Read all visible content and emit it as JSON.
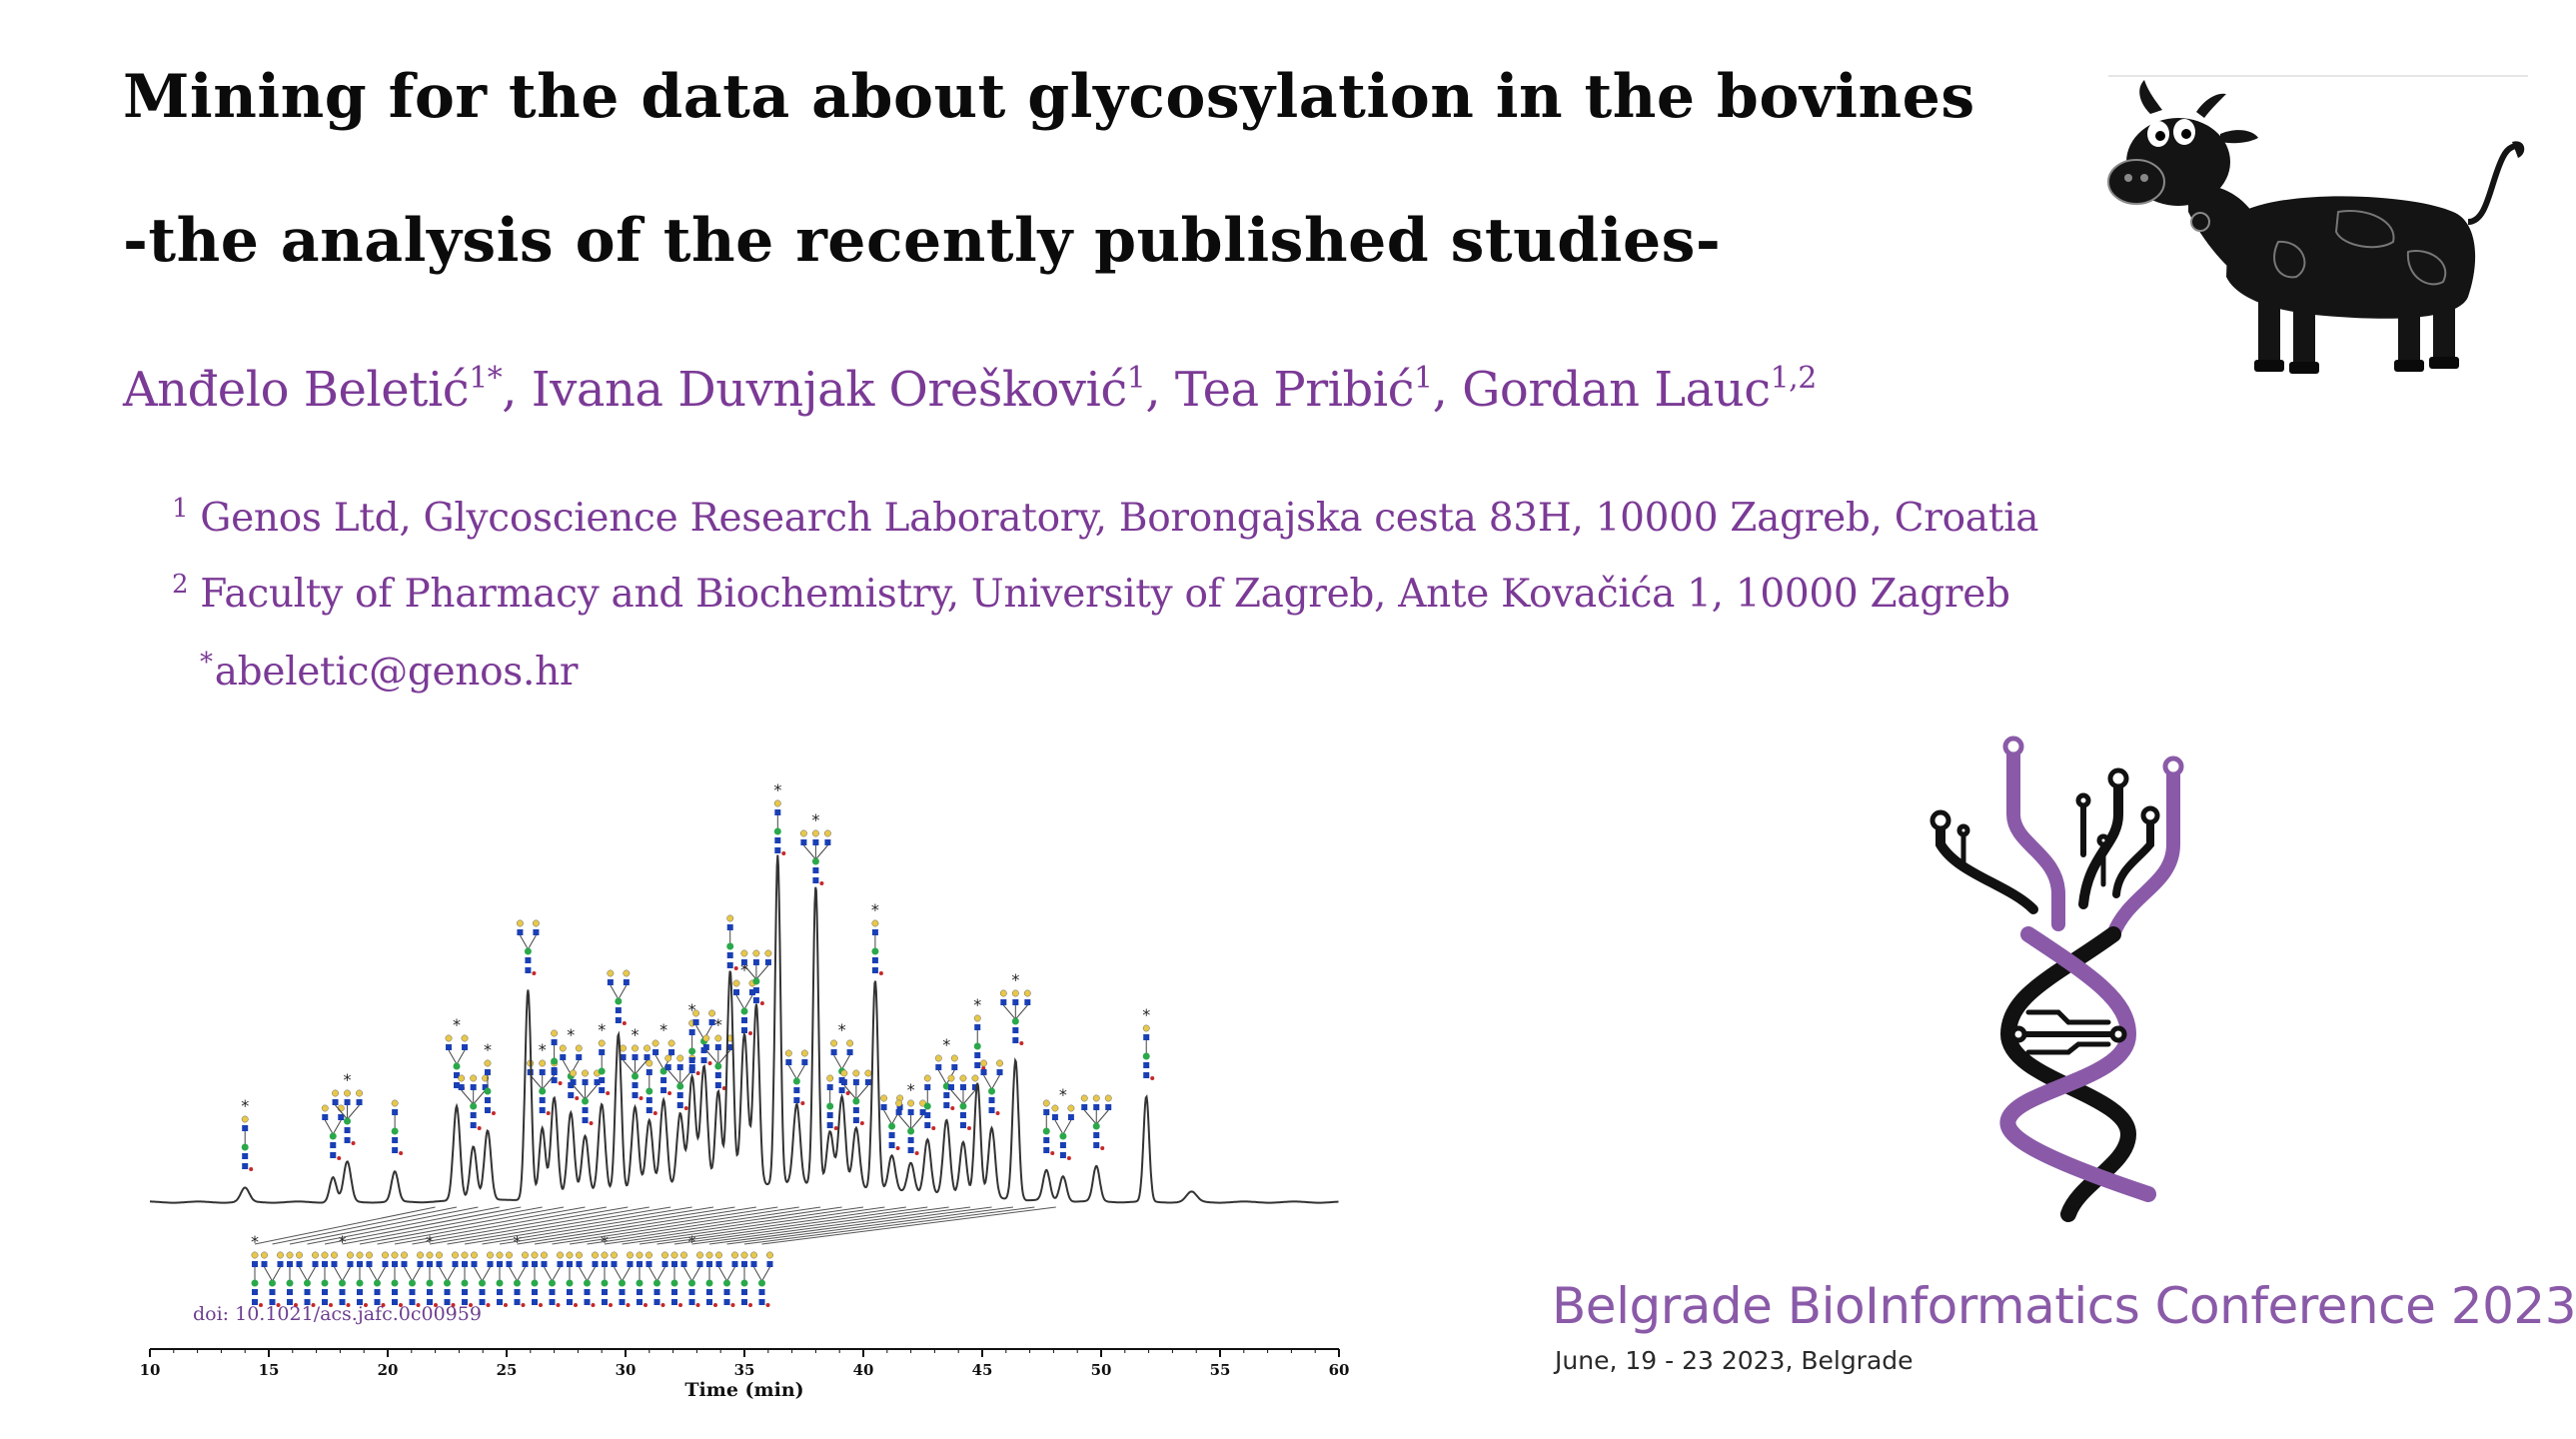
{
  "title": {
    "line1": "Mining for the data about glycosylation in the bovines",
    "line2": "-the analysis of the recently published studies-"
  },
  "authors": [
    {
      "name": "Anđelo Beletić",
      "sup": "1*",
      "sep": ", "
    },
    {
      "name": "Ivana Duvnjak Orešković",
      "sup": "1",
      "sep": ", "
    },
    {
      "name": "Tea Pribić",
      "sup": "1",
      "sep": ", "
    },
    {
      "name": "Gordan Lauc",
      "sup": "1,2",
      "sep": ""
    }
  ],
  "affiliations": [
    {
      "sup": "1",
      "text": "Genos Ltd, Glycoscience Research Laboratory, Borongajska cesta 83H, 10000 Zagreb, Croatia"
    },
    {
      "sup": "2",
      "text": "Faculty of Pharmacy and Biochemistry, University of Zagreb, Ante Kovačića 1, 10000 Zagreb"
    }
  ],
  "email": {
    "sup": "*",
    "text": "abeletic@genos.hr"
  },
  "chromatogram": {
    "doi": "doi: 10.1021/acs.jafc.0c00959",
    "xlabel": "Time (min)",
    "ticks": [
      "10",
      "15",
      "20",
      "25",
      "30",
      "35",
      "40",
      "45",
      "50",
      "55",
      "60"
    ],
    "xlim": [
      10,
      60
    ],
    "peak_marker": "*",
    "line_color": "#333333"
  },
  "conference": {
    "name": "Belgrade BioInformatics Conference 2023",
    "date": "June, 19 - 23 2023, Belgrade",
    "accent_color": "#8a5aa8"
  },
  "colors": {
    "title": "#0b0b0b",
    "purple_text": "#7b3a96"
  },
  "icons": [
    "cow-illustration",
    "dna-circuit-logo"
  ]
}
